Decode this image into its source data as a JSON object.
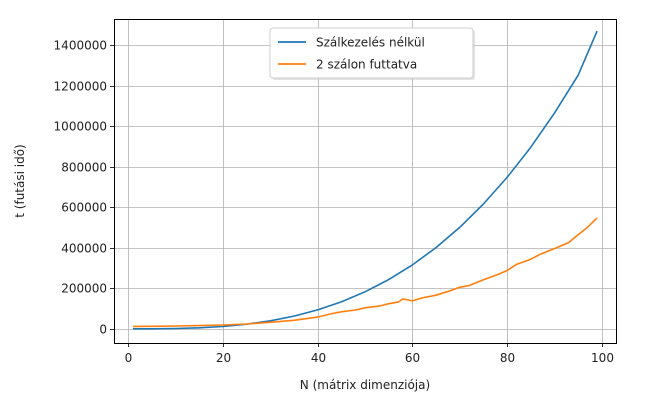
{
  "chart_data": {
    "type": "line",
    "title": "",
    "xlabel": "N (mátrix dimenziója)",
    "ylabel": "t (futási idő)",
    "xlim": [
      -3,
      103
    ],
    "ylim": [
      -70000,
      1530000
    ],
    "xticks": [
      0,
      20,
      40,
      60,
      80,
      100
    ],
    "yticks": [
      0,
      200000,
      400000,
      600000,
      800000,
      1000000,
      1200000,
      1400000
    ],
    "grid": true,
    "legend_position": "upper center",
    "series": [
      {
        "name": "Szálkezelés nélkül",
        "color": "#1f77b4",
        "x": [
          1,
          5,
          10,
          15,
          20,
          25,
          30,
          35,
          40,
          45,
          50,
          55,
          60,
          65,
          70,
          75,
          80,
          85,
          90,
          95,
          99
        ],
        "y": [
          0,
          200,
          1500,
          4900,
          11700,
          22800,
          39500,
          62600,
          93500,
          133000,
          182600,
          243000,
          315500,
          401200,
          501100,
          616300,
          747900,
          897000,
          1064700,
          1252000,
          1470000
        ]
      },
      {
        "name": "2 szálon futtatva",
        "color": "#ff7f0e",
        "x": [
          1,
          5,
          10,
          15,
          20,
          25,
          30,
          35,
          40,
          43,
          45,
          48,
          50,
          53,
          55,
          57,
          58,
          60,
          62,
          65,
          68,
          70,
          72,
          75,
          78,
          80,
          82,
          85,
          87,
          90,
          93,
          95,
          97,
          99
        ],
        "y": [
          12000,
          12500,
          14000,
          16000,
          19000,
          24000,
          32000,
          42000,
          58000,
          75000,
          84000,
          93000,
          104000,
          112000,
          124000,
          132000,
          148000,
          138000,
          152000,
          166000,
          188000,
          205000,
          214000,
          242000,
          268000,
          288000,
          318000,
          344000,
          368000,
          396000,
          426000,
          465000,
          502000,
          548000
        ]
      }
    ]
  }
}
